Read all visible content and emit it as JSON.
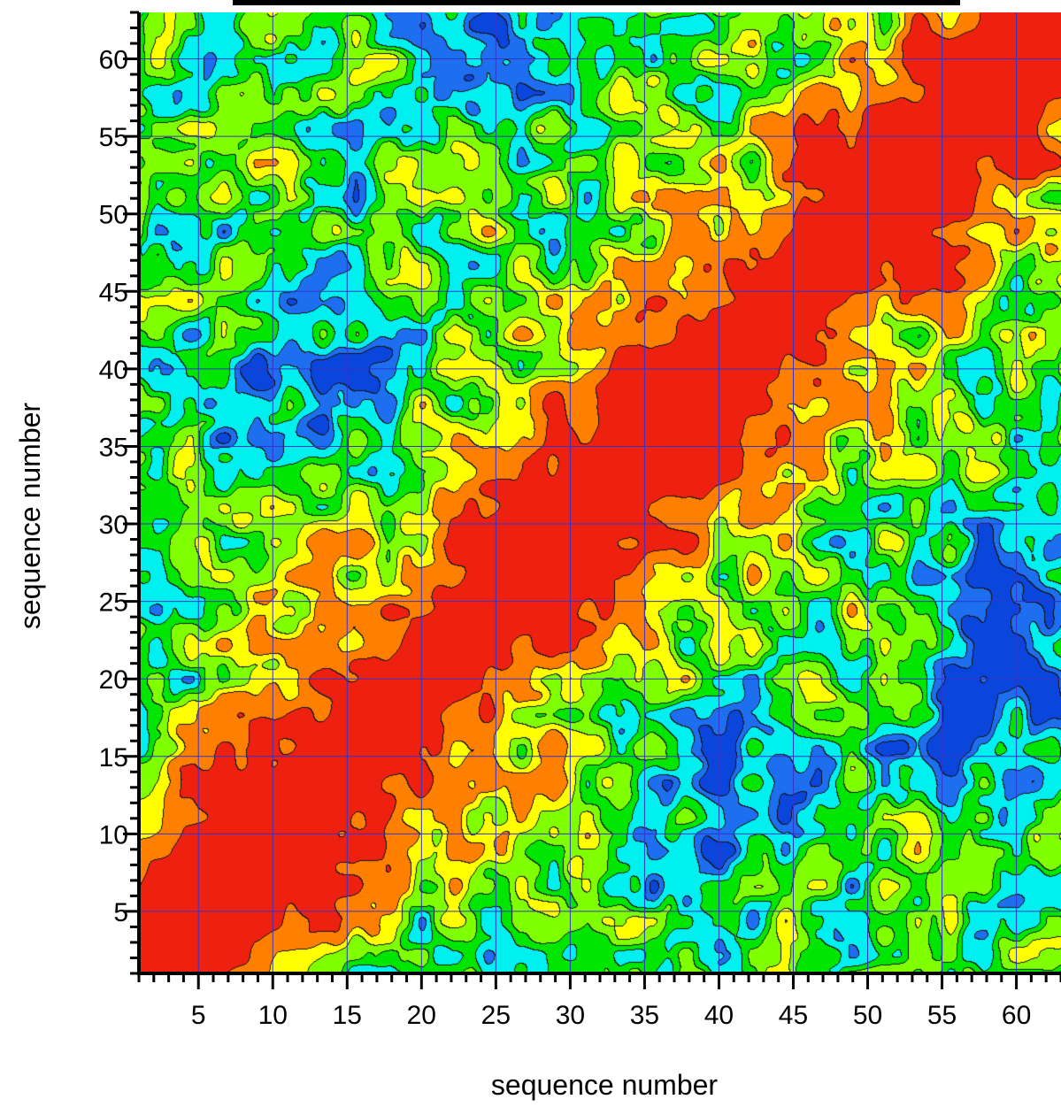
{
  "chart_data": {
    "type": "contour",
    "title": "",
    "xlabel": "sequence number",
    "ylabel": "sequence number",
    "xlim": [
      1,
      63
    ],
    "ylim": [
      1,
      63
    ],
    "x_ticks": [
      5,
      10,
      15,
      20,
      25,
      30,
      35,
      40,
      45,
      50,
      55,
      60
    ],
    "y_ticks": [
      5,
      10,
      15,
      20,
      25,
      30,
      35,
      40,
      45,
      50,
      55,
      60
    ],
    "grid": true,
    "grid_color": "#3333cc",
    "contour_levels": [
      "#0a46dc",
      "#1e6ef0",
      "#00f0f0",
      "#00e600",
      "#80ff00",
      "#ffff00",
      "#ff8000",
      "#ee2010"
    ],
    "diagonal_band": true,
    "low_regions": [
      {
        "x": 13,
        "y": 40
      },
      {
        "x": 41,
        "y": 13
      },
      {
        "x": 25,
        "y": 62
      },
      {
        "x": 60,
        "y": 26
      },
      {
        "x": 58,
        "y": 18
      }
    ]
  }
}
